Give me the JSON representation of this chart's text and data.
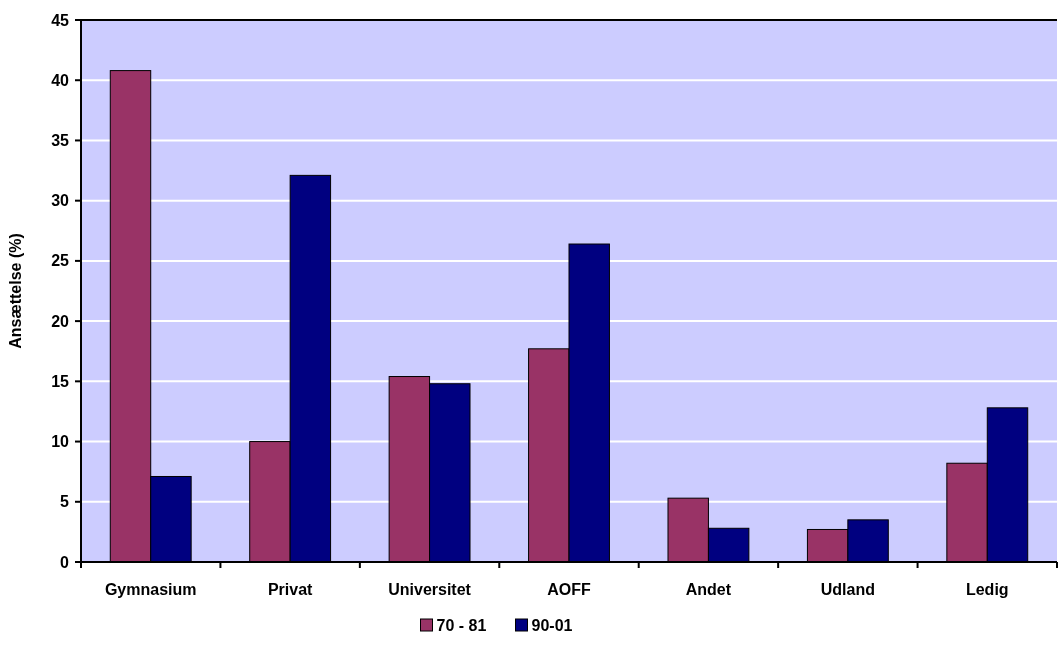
{
  "chart_data": {
    "type": "bar",
    "ylabel": "Ansættelse (%)",
    "categories": [
      "Gymnasium",
      "Privat",
      "Universitet",
      "AOFF",
      "Andet",
      "Udland",
      "Ledig"
    ],
    "series": [
      {
        "name": "70 - 81",
        "color": "#993366",
        "values": [
          40.8,
          10.0,
          15.4,
          17.7,
          5.3,
          2.7,
          8.2
        ]
      },
      {
        "name": "90-01",
        "color": "#000080",
        "values": [
          7.1,
          32.1,
          14.8,
          26.4,
          2.8,
          3.5,
          12.8
        ]
      }
    ],
    "ylim": [
      0,
      45
    ],
    "yticks": [
      0,
      5,
      10,
      15,
      20,
      25,
      30,
      35,
      40,
      45
    ],
    "grid": "y",
    "legend": "bottom"
  }
}
